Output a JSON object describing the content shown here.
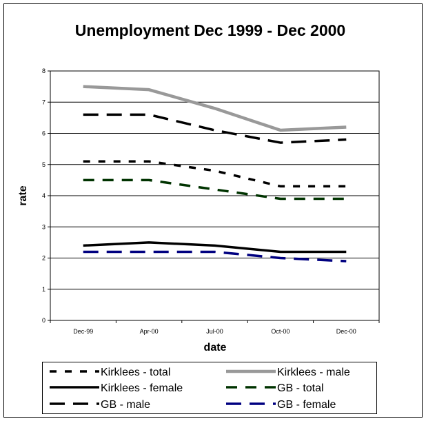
{
  "chart_data": {
    "type": "line",
    "title": "Unemployment Dec 1999 - Dec 2000",
    "xlabel": "date",
    "ylabel": "rate",
    "categories": [
      "Dec-99",
      "Apr-00",
      "Jul-00",
      "Oct-00",
      "Dec-00"
    ],
    "ylim": [
      0,
      8
    ],
    "yticks": [
      0,
      1,
      2,
      3,
      4,
      5,
      6,
      7,
      8
    ],
    "grid": true,
    "legend_position": "bottom",
    "series": [
      {
        "name": "Kirklees - total",
        "values": [
          5.1,
          5.1,
          4.8,
          4.3,
          4.3
        ],
        "color": "#000000",
        "style": "dash-short"
      },
      {
        "name": "Kirklees - male",
        "values": [
          7.5,
          7.4,
          6.8,
          6.1,
          6.2
        ],
        "color": "#999999",
        "style": "solid-thick"
      },
      {
        "name": "Kirklees - female",
        "values": [
          2.4,
          2.5,
          2.4,
          2.2,
          2.2
        ],
        "color": "#000000",
        "style": "solid"
      },
      {
        "name": "GB - total",
        "values": [
          4.5,
          4.5,
          4.2,
          3.9,
          3.9
        ],
        "color": "#003300",
        "style": "dash-medium"
      },
      {
        "name": "GB - male",
        "values": [
          6.6,
          6.6,
          6.1,
          5.7,
          5.8
        ],
        "color": "#000000",
        "style": "dash-long"
      },
      {
        "name": "GB - female",
        "values": [
          2.2,
          2.2,
          2.2,
          2.0,
          1.9
        ],
        "color": "#000080",
        "style": "dash-long"
      }
    ]
  }
}
